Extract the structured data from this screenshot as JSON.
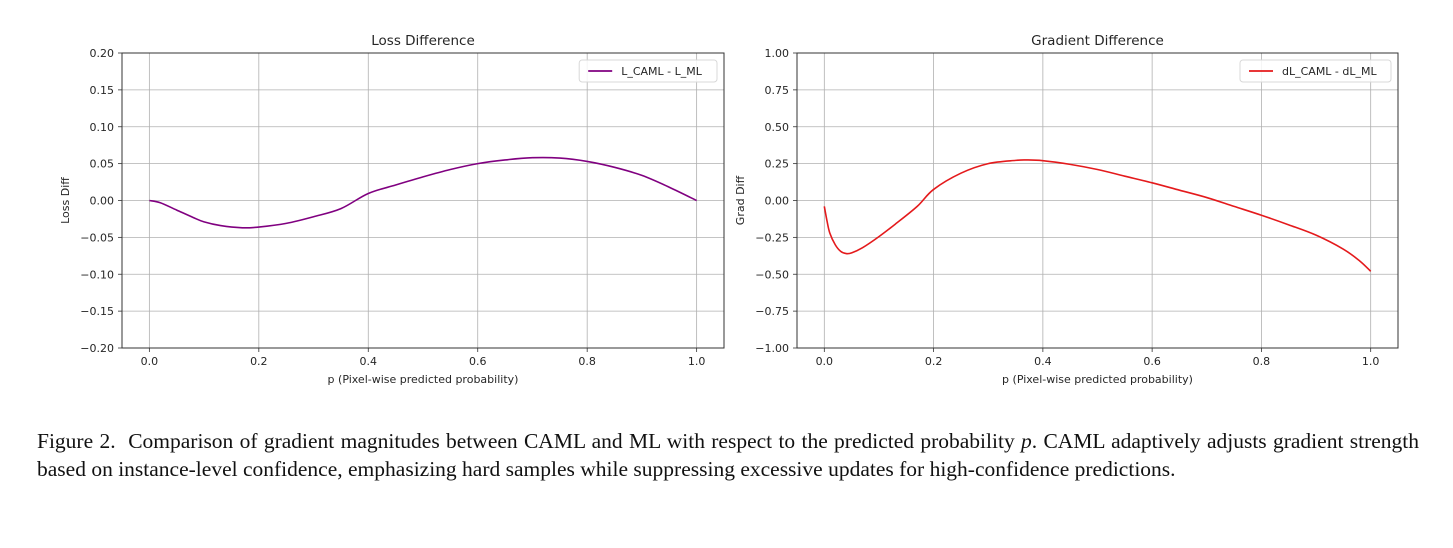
{
  "figure": {
    "caption_label": "Figure 2.",
    "caption_part1": "Comparison of gradient magnitudes between CAML and ML with respect to the predicted probability",
    "caption_var": "p",
    "caption_part2": ". CAML adaptively adjusts gradient strength based on instance-level confidence, emphasizing hard samples while suppressing excessive updates for high-confidence predictions."
  },
  "chart_data": [
    {
      "type": "line",
      "title": "Loss Difference",
      "xlabel": "p (Pixel-wise predicted probability)",
      "ylabel": "Loss Diff",
      "xlim": [
        -0.05,
        1.05
      ],
      "ylim": [
        -0.2,
        0.2
      ],
      "xticks": [
        0.0,
        0.2,
        0.4,
        0.6,
        0.8,
        1.0
      ],
      "xtick_labels": [
        "0.0",
        "0.2",
        "0.4",
        "0.6",
        "0.8",
        "1.0"
      ],
      "yticks": [
        -0.2,
        -0.15,
        -0.1,
        -0.05,
        0.0,
        0.05,
        0.1,
        0.15,
        0.2
      ],
      "ytick_labels": [
        "−0.20",
        "−0.15",
        "−0.10",
        "−0.05",
        "0.00",
        "0.05",
        "0.10",
        "0.15",
        "0.20"
      ],
      "grid": true,
      "legend_position": "top-right",
      "series": [
        {
          "name": "L_CAML - L_ML",
          "color": "#800080",
          "x": [
            0.0,
            0.02,
            0.05,
            0.08,
            0.1,
            0.13,
            0.17,
            0.2,
            0.25,
            0.3,
            0.35,
            0.4,
            0.45,
            0.5,
            0.55,
            0.6,
            0.65,
            0.7,
            0.75,
            0.8,
            0.85,
            0.9,
            0.95,
            1.0
          ],
          "y": [
            0.0,
            -0.003,
            -0.013,
            -0.023,
            -0.029,
            -0.034,
            -0.037,
            -0.036,
            -0.031,
            -0.022,
            -0.011,
            0.0095,
            0.021,
            0.032,
            0.042,
            0.05,
            0.055,
            0.058,
            0.0575,
            0.053,
            0.045,
            0.034,
            0.018,
            0.0
          ]
        }
      ]
    },
    {
      "type": "line",
      "title": "Gradient Difference",
      "xlabel": "p (Pixel-wise predicted probability)",
      "ylabel": "Grad Diff",
      "xlim": [
        -0.05,
        1.05
      ],
      "ylim": [
        -1.0,
        1.0
      ],
      "xticks": [
        0.0,
        0.2,
        0.4,
        0.6,
        0.8,
        1.0
      ],
      "xtick_labels": [
        "0.0",
        "0.2",
        "0.4",
        "0.6",
        "0.8",
        "1.0"
      ],
      "yticks": [
        -1.0,
        -0.75,
        -0.5,
        -0.25,
        0.0,
        0.25,
        0.5,
        0.75,
        1.0
      ],
      "ytick_labels": [
        "−1.00",
        "−0.75",
        "−0.50",
        "−0.25",
        "0.00",
        "0.25",
        "0.50",
        "0.75",
        "1.00"
      ],
      "grid": true,
      "legend_position": "top-right",
      "series": [
        {
          "name": "dL_CAML - dL_ML",
          "color": "#e41a1c",
          "x": [
            0.0,
            0.005,
            0.01,
            0.02,
            0.03,
            0.04,
            0.05,
            0.07,
            0.1,
            0.13,
            0.17,
            0.2,
            0.25,
            0.3,
            0.35,
            0.37,
            0.4,
            0.45,
            0.5,
            0.55,
            0.6,
            0.65,
            0.7,
            0.75,
            0.8,
            0.85,
            0.9,
            0.95,
            0.98,
            1.0
          ],
          "y": [
            -0.04,
            -0.14,
            -0.22,
            -0.3,
            -0.345,
            -0.36,
            -0.355,
            -0.32,
            -0.245,
            -0.16,
            -0.04,
            0.075,
            0.185,
            0.25,
            0.272,
            0.275,
            0.27,
            0.245,
            0.21,
            0.165,
            0.12,
            0.07,
            0.02,
            -0.04,
            -0.1,
            -0.165,
            -0.235,
            -0.33,
            -0.41,
            -0.48
          ]
        }
      ]
    }
  ]
}
